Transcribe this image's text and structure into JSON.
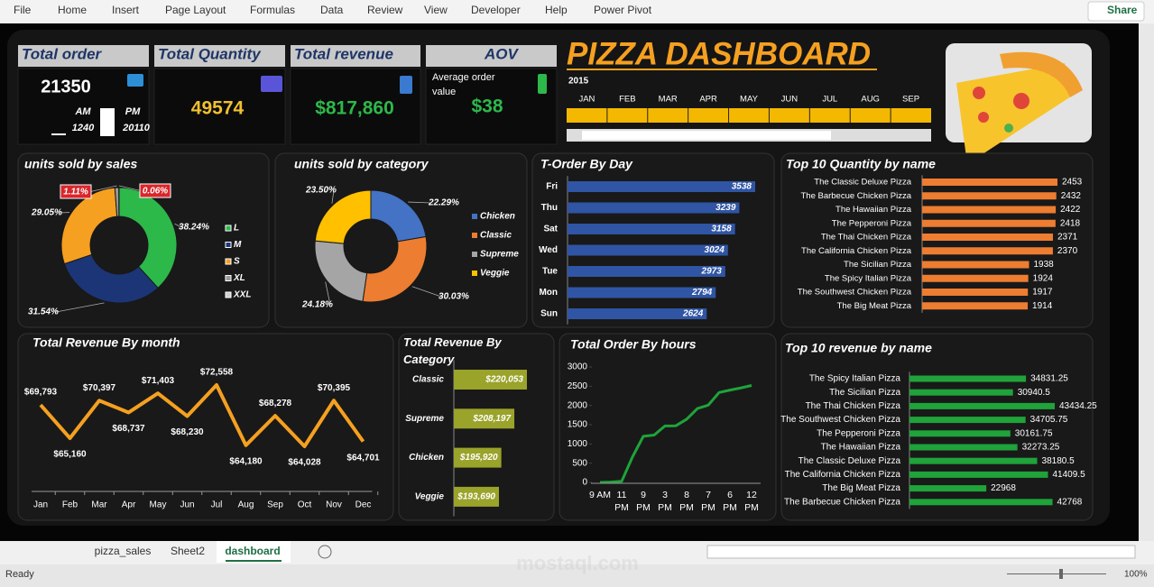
{
  "menu": [
    "File",
    "Home",
    "Insert",
    "Page Layout",
    "Formulas",
    "Data",
    "Review",
    "View",
    "Developer",
    "Help",
    "Power Pivot"
  ],
  "share": "Share",
  "kpis": {
    "total_order": {
      "title": "Total order",
      "value": 21350,
      "am_label": "AM",
      "am": 1240,
      "pm_label": "PM",
      "pm": 20110
    },
    "total_quantity": {
      "title": "Total Quantity",
      "value": 49574
    },
    "total_revenue": {
      "title": "Total revenue",
      "value": "$817,860"
    },
    "aov": {
      "title": "AOV",
      "caption": "Average order value",
      "value": "$38"
    }
  },
  "header": {
    "title": "PIZZA DASHBOARD",
    "year": "2015",
    "months": [
      "JAN",
      "FEB",
      "MAR",
      "APR",
      "MAY",
      "JUN",
      "JUL",
      "AUG",
      "SEP"
    ]
  },
  "chart_data": [
    {
      "type": "donut",
      "title": "units sold by sales",
      "categories": [
        "L",
        "M",
        "S",
        "XL",
        "XXL"
      ],
      "values": [
        38.24,
        31.54,
        29.05,
        1.11,
        0.06
      ],
      "value_labels": [
        "38.24%",
        "31.54%",
        "29.05%",
        "1.11%",
        "0.06%"
      ],
      "colors": [
        "#2db84a",
        "#1c3577",
        "#f5a020",
        "#9a9a9a",
        "#d0d0d0"
      ]
    },
    {
      "type": "donut",
      "title": "units sold by category",
      "categories": [
        "Chicken",
        "Classic",
        "Supreme",
        "Veggie"
      ],
      "values": [
        22.29,
        30.03,
        24.18,
        23.5
      ],
      "value_labels": [
        "22.29%",
        "30.03%",
        "24.18%",
        "23.50%"
      ],
      "colors": [
        "#4472c4",
        "#ed7d31",
        "#a5a5a5",
        "#ffc000"
      ]
    },
    {
      "type": "hbar",
      "title": "T-Order By Day",
      "categories": [
        "Fri",
        "Thu",
        "Sat",
        "Wed",
        "Tue",
        "Mon",
        "Sun"
      ],
      "values": [
        3538,
        3239,
        3158,
        3024,
        2973,
        2794,
        2624
      ],
      "color": "#2f55a4"
    },
    {
      "type": "hbar",
      "title": "Top 10 Quantity by name",
      "categories": [
        "The Classic Deluxe Pizza",
        "The Barbecue Chicken Pizza",
        "The Hawaiian Pizza",
        "The Pepperoni Pizza",
        "The Thai Chicken Pizza",
        "The California Chicken Pizza",
        "The Sicilian Pizza",
        "The Spicy Italian Pizza",
        "The Southwest Chicken Pizza",
        "The Big Meat Pizza"
      ],
      "values": [
        2453,
        2432,
        2422,
        2418,
        2371,
        2370,
        1938,
        1924,
        1917,
        1914
      ],
      "color": "#ed7d31"
    },
    {
      "type": "line",
      "title": "Total Revenue By month",
      "categories": [
        "Jan",
        "Feb",
        "Mar",
        "Apr",
        "May",
        "Jun",
        "Jul",
        "Aug",
        "Sep",
        "Oct",
        "Nov",
        "Dec"
      ],
      "values": [
        69793,
        65160,
        70397,
        68737,
        71403,
        68230,
        72558,
        64180,
        68278,
        64028,
        70395,
        64701
      ],
      "value_labels": [
        "$69,793",
        "$65,160",
        "$70,397",
        "$68,737",
        "$71,403",
        "$68,230",
        "$72,558",
        "$64,180",
        "$68,278",
        "$64,028",
        "$70,395",
        "$64,701"
      ],
      "color": "#f5a020"
    },
    {
      "type": "hbar",
      "title": "Total Revenue By Category",
      "categories": [
        "Classic",
        "Supreme",
        "Chicken",
        "Veggie"
      ],
      "values": [
        220053,
        208197,
        195920,
        193690
      ],
      "value_labels": [
        "$220,053",
        "$208,197",
        "$195,920",
        "$193,690"
      ],
      "color": "#9aa32a"
    },
    {
      "type": "line",
      "title": "Total Order By hours",
      "categories": [
        "9 AM",
        null,
        "11 PM",
        null,
        "9 PM",
        null,
        "3 PM",
        null,
        "8 PM",
        null,
        "7 PM",
        null,
        "6 PM",
        null,
        "12 PM"
      ],
      "values": [
        1,
        8,
        28,
        663,
        1198,
        1231,
        1468,
        1472,
        1642,
        1920,
        2009,
        2336,
        2399,
        2455,
        2520
      ],
      "ylim": [
        0,
        3000
      ],
      "yticks": [
        0,
        500,
        1000,
        1500,
        2000,
        2500,
        3000
      ],
      "color": "#1fa33a"
    },
    {
      "type": "hbar",
      "title": "Top 10 revenue by name",
      "categories": [
        "The Spicy Italian Pizza",
        "The Sicilian Pizza",
        "The Thai Chicken Pizza",
        "The Southwest Chicken Pizza",
        "The Pepperoni Pizza",
        "The Hawaiian Pizza",
        "The Classic Deluxe Pizza",
        "The California Chicken Pizza",
        "The Big Meat Pizza",
        "The Barbecue Chicken Pizza"
      ],
      "values": [
        34831.25,
        30940.5,
        43434.25,
        34705.75,
        30161.75,
        32273.25,
        38180.5,
        41409.5,
        22968,
        42768
      ],
      "color": "#1fa33a"
    }
  ],
  "sheets": [
    "pizza_sales",
    "Sheet2",
    "dashboard"
  ],
  "status": "Ready",
  "zoom": "100%",
  "watermark": "mostaql.com"
}
